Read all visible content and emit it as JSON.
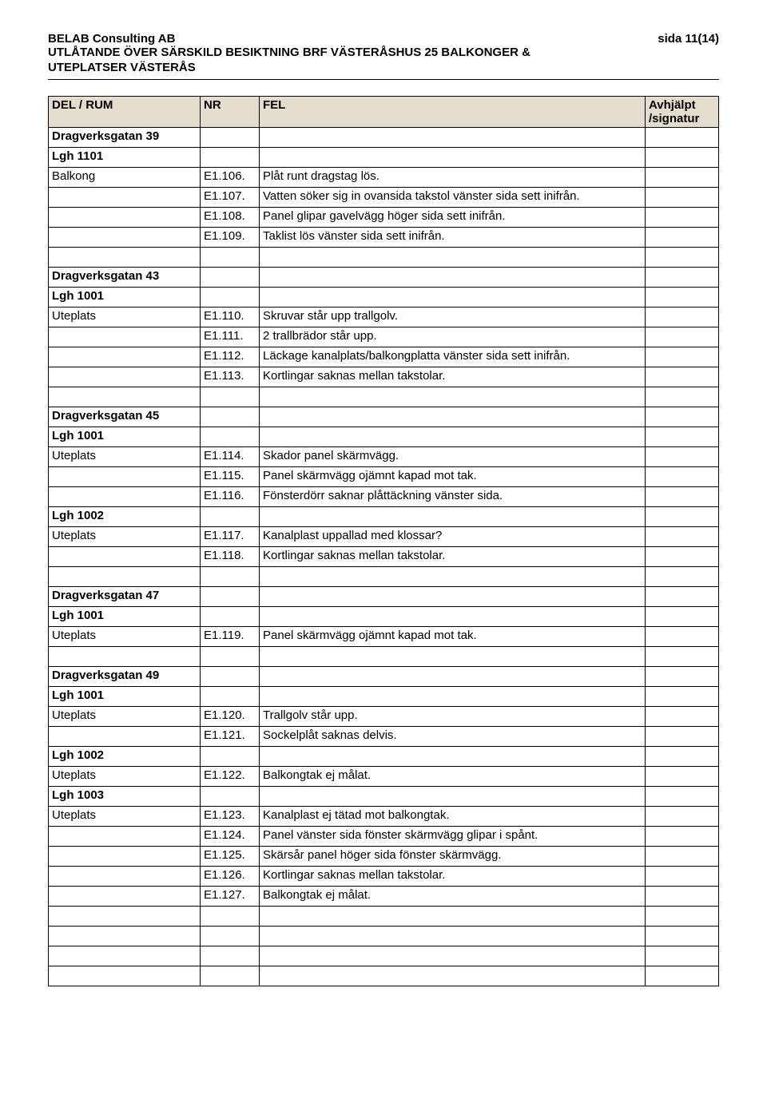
{
  "header": {
    "company": "BELAB Consulting AB",
    "page": "sida 11(14)",
    "sub1": "UTLÅTANDE ÖVER SÄRSKILD BESIKTNING BRF VÄSTERÅSHUS 25 BALKONGER &",
    "sub2": "UTEPLATSER VÄSTERÅS"
  },
  "columns": [
    "DEL / RUM",
    "NR",
    "FEL",
    "Avhjälpt /signatur"
  ],
  "rows": [
    {
      "c1": "Dragverksgatan 39",
      "bold": true
    },
    {
      "c1": "Lgh 1101",
      "bold": true
    },
    {
      "c1": "Balkong",
      "c2": "E1.106.",
      "c3": "Plåt runt dragstag lös."
    },
    {
      "c2": "E1.107.",
      "c3": "Vatten söker sig in ovansida takstol vänster sida sett inifrån."
    },
    {
      "c2": "E1.108.",
      "c3": "Panel glipar gavelvägg höger sida sett inifrån."
    },
    {
      "c2": "E1.109.",
      "c3": "Taklist lös vänster sida sett inifrån."
    },
    {},
    {
      "c1": "Dragverksgatan 43",
      "bold": true
    },
    {
      "c1": "Lgh 1001",
      "bold": true
    },
    {
      "c1": "Uteplats",
      "c2": "E1.110.",
      "c3": "Skruvar står upp trallgolv."
    },
    {
      "c2": "E1.111.",
      "c3": "2 trallbrädor står upp."
    },
    {
      "c2": "E1.112.",
      "c3": "Läckage kanalplats/balkongplatta vänster sida sett inifrån."
    },
    {
      "c2": "E1.113.",
      "c3": "Kortlingar saknas mellan takstolar."
    },
    {},
    {
      "c1": "Dragverksgatan 45",
      "bold": true
    },
    {
      "c1": "Lgh 1001",
      "bold": true
    },
    {
      "c1": "Uteplats",
      "c2": "E1.114.",
      "c3": "Skador panel skärmvägg."
    },
    {
      "c2": "E1.115.",
      "c3": "Panel skärmvägg ojämnt kapad mot tak."
    },
    {
      "c2": "E1.116.",
      "c3": "Fönsterdörr saknar plåttäckning vänster sida."
    },
    {
      "c1": "Lgh 1002",
      "bold": true
    },
    {
      "c1": "Uteplats",
      "c2": "E1.117.",
      "c3": "Kanalplast uppallad med klossar?"
    },
    {
      "c2": "E1.118.",
      "c3": "Kortlingar saknas mellan takstolar."
    },
    {},
    {
      "c1": "Dragverksgatan 47",
      "bold": true
    },
    {
      "c1": "Lgh 1001",
      "bold": true
    },
    {
      "c1": "Uteplats",
      "c2": "E1.119.",
      "c3": "Panel skärmvägg ojämnt kapad mot tak."
    },
    {},
    {
      "c1": "Dragverksgatan 49",
      "bold": true
    },
    {
      "c1": "Lgh 1001",
      "bold": true
    },
    {
      "c1": "Uteplats",
      "c2": "E1.120.",
      "c3": "Trallgolv står upp."
    },
    {
      "c2": "E1.121.",
      "c3": "Sockelplåt saknas delvis."
    },
    {
      "c1": "Lgh 1002",
      "bold": true
    },
    {
      "c1": "Uteplats",
      "c2": "E1.122.",
      "c3": "Balkongtak ej målat."
    },
    {
      "c1": "Lgh 1003",
      "bold": true
    },
    {
      "c1": "Uteplats",
      "c2": "E1.123.",
      "c3": "Kanalplast ej tätad mot balkongtak."
    },
    {
      "c2": "E1.124.",
      "c3": "Panel vänster sida fönster skärmvägg glipar i spånt."
    },
    {
      "c2": "E1.125.",
      "c3": "Skärsår panel höger sida fönster skärmvägg."
    },
    {
      "c2": "E1.126.",
      "c3": "Kortlingar saknas mellan takstolar."
    },
    {
      "c2": "E1.127.",
      "c3": "Balkongtak ej målat."
    },
    {},
    {},
    {},
    {}
  ]
}
